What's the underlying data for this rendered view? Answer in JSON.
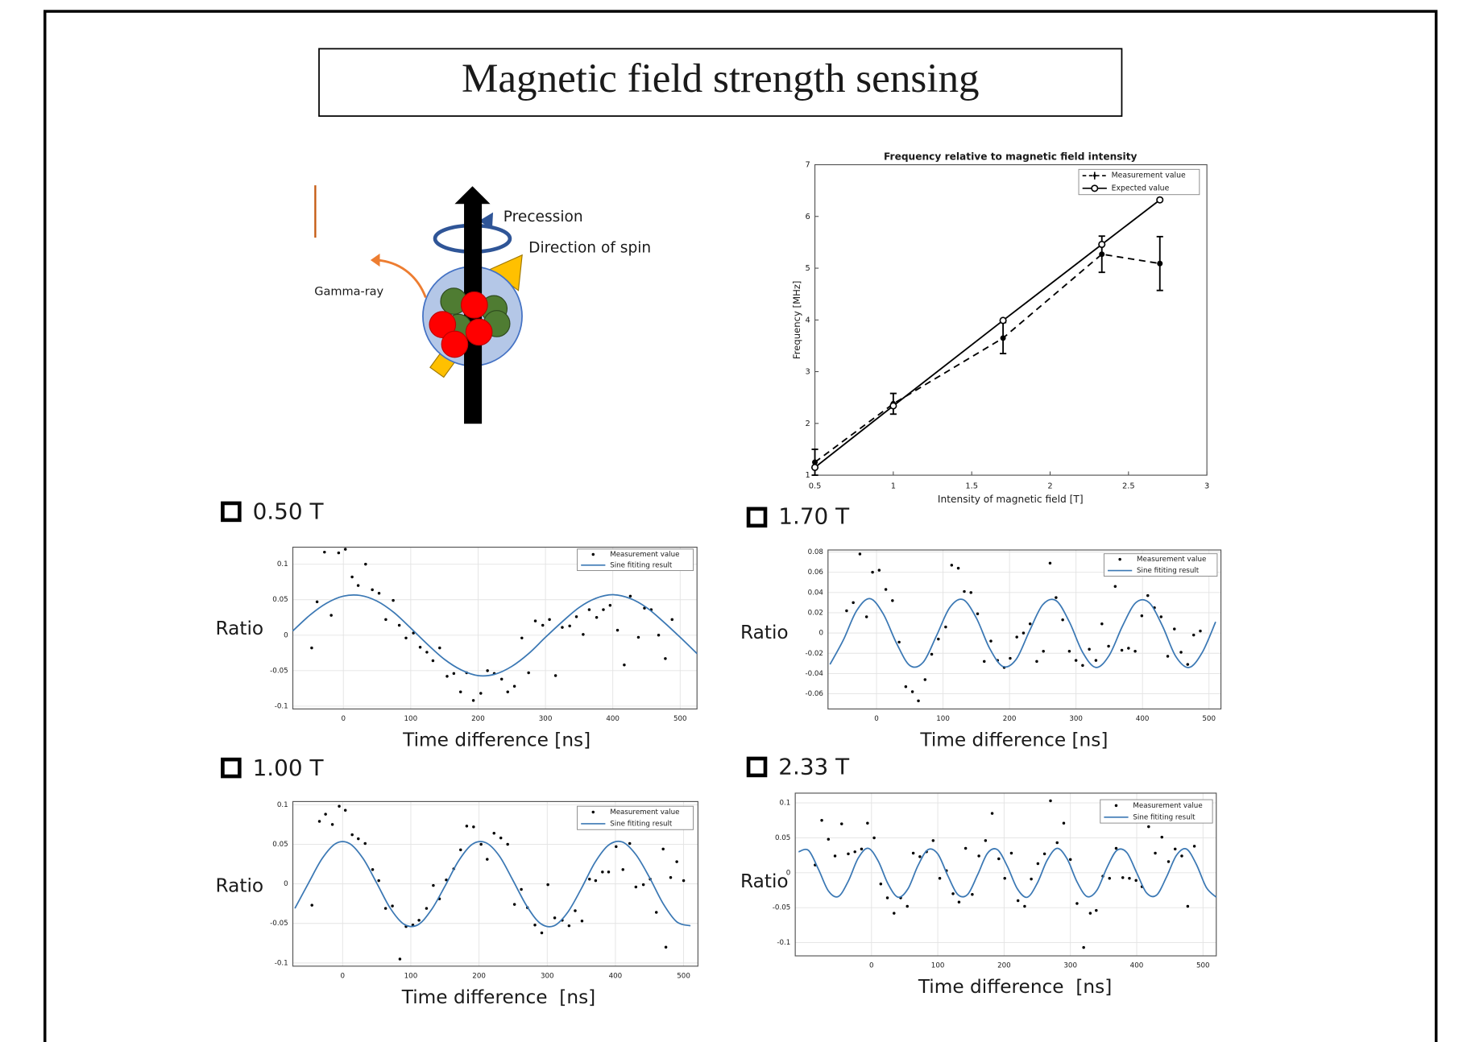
{
  "header": {
    "title": "Magnetic field strength sensing"
  },
  "diagram": {
    "precession": "Precession",
    "spin": "Direction of spin",
    "gamma": "Gamma-ray"
  },
  "chart_data": [
    {
      "type": "line",
      "title": "Frequency relative to magnetic field intensity",
      "x_label": "Intensity of magnetic field [T]",
      "y_label": "Frequency [MHz]",
      "xlim": [
        0.5,
        3
      ],
      "ylim": [
        1,
        7
      ],
      "xticks": [
        0.5,
        1,
        1.5,
        2,
        2.5,
        3
      ],
      "yticks": [
        1,
        2,
        3,
        4,
        5,
        6,
        7
      ],
      "grid": false,
      "legend": "upper right",
      "series": [
        {
          "name": "Measurement value",
          "color": "#000000",
          "line_style": "dashed",
          "marker": "dot",
          "x": [
            0.5,
            1,
            1.7,
            2.33,
            2.7
          ],
          "values": [
            1.25,
            2.38,
            3.65,
            5.27,
            5.09
          ],
          "errors": [
            0.25,
            0.2,
            0.3,
            0.35,
            0.52
          ]
        },
        {
          "name": "Expected value",
          "color": "#000000",
          "line_style": "solid",
          "marker": "open-circle",
          "x": [
            0.5,
            1,
            1.7,
            2.33,
            2.7
          ],
          "values": [
            1.15,
            2.34,
            3.99,
            5.46,
            6.32
          ]
        }
      ]
    },
    {
      "type": "scatter",
      "title": "0.50 T",
      "x_label": "Time difference [ns]",
      "y_label": "Ratio",
      "xlim": [
        -75,
        525
      ],
      "ylim": [
        -0.104,
        0.124
      ],
      "xticks": [
        0,
        100,
        200,
        300,
        400,
        500
      ],
      "yticks": [
        -0.1,
        -0.05,
        0,
        0.05,
        0.1
      ],
      "grid": true,
      "legend": "upper right",
      "series": [
        {
          "name": "Measurement value",
          "type": "scatter",
          "color": "#000000",
          "marker": "dot",
          "x": [
            -47,
            -39,
            -28,
            -18,
            -7,
            3,
            13,
            22,
            33,
            43,
            53,
            63,
            74,
            83,
            93,
            104,
            114,
            124,
            133,
            143,
            154,
            164,
            174,
            183,
            193,
            204,
            214,
            224,
            235,
            244,
            254,
            265,
            275,
            285,
            296,
            306,
            315,
            325,
            336,
            346,
            356,
            365,
            376,
            386,
            396,
            407,
            417,
            426,
            438,
            447,
            457,
            468,
            478,
            488
          ],
          "values": [
            -0.018,
            0.047,
            0.117,
            0.028,
            0.116,
            0.121,
            0.082,
            0.07,
            0.1,
            0.064,
            0.059,
            0.022,
            0.049,
            0.014,
            -0.004,
            0.003,
            -0.017,
            -0.024,
            -0.036,
            -0.018,
            -0.058,
            -0.054,
            -0.08,
            -0.053,
            -0.092,
            -0.082,
            -0.05,
            -0.054,
            -0.062,
            -0.08,
            -0.072,
            -0.004,
            -0.053,
            0.02,
            0.014,
            0.022,
            -0.057,
            0.011,
            0.013,
            0.026,
            0.001,
            0.036,
            0.025,
            0.036,
            0.042,
            0.007,
            -0.042,
            0.055,
            -0.003,
            0.038,
            0.036,
            0,
            -0.033,
            0.022
          ]
        },
        {
          "name": "Sine fititing result",
          "type": "line",
          "color": "#3b78b4",
          "x": [
            -75,
            -50,
            -25,
            0,
            25,
            50,
            75,
            100,
            125,
            150,
            175,
            200,
            225,
            250,
            275,
            300,
            325,
            350,
            375,
            400,
            425,
            450,
            475,
            500,
            525
          ],
          "values": [
            0.006,
            0.028,
            0.045,
            0.055,
            0.056,
            0.048,
            0.032,
            0.01,
            -0.013,
            -0.034,
            -0.049,
            -0.057,
            -0.055,
            -0.044,
            -0.026,
            -0.003,
            0.019,
            0.039,
            0.052,
            0.057,
            0.052,
            0.039,
            0.019,
            -0.003,
            -0.026
          ]
        }
      ]
    },
    {
      "type": "scatter",
      "title": "1.70 T",
      "x_label": "Time difference [ns]",
      "y_label": "Ratio",
      "xlim": [
        -73,
        518
      ],
      "ylim": [
        -0.075,
        0.082
      ],
      "xticks": [
        0,
        100,
        200,
        300,
        400,
        500
      ],
      "yticks": [
        -0.06,
        -0.04,
        -0.02,
        0,
        0.02,
        0.04,
        0.06,
        0.08
      ],
      "grid": true,
      "legend": "upper right",
      "series": [
        {
          "name": "Measurement value",
          "type": "scatter",
          "color": "#000000",
          "marker": "dot",
          "x": [
            -45,
            -35,
            -25,
            -15,
            -6,
            4,
            14,
            24,
            34,
            44,
            54,
            63,
            73,
            83,
            93,
            104,
            113,
            123,
            132,
            142,
            152,
            162,
            172,
            182,
            192,
            201,
            211,
            221,
            231,
            241,
            251,
            261,
            270,
            280,
            290,
            300,
            310,
            320,
            330,
            339,
            349,
            359,
            369,
            379,
            389,
            399,
            408,
            418,
            428,
            438,
            448,
            458,
            468,
            477,
            487
          ],
          "values": [
            0.022,
            0.03,
            0.078,
            0.016,
            0.06,
            0.062,
            0.043,
            0.032,
            -0.009,
            -0.053,
            -0.058,
            -0.067,
            -0.046,
            -0.021,
            -0.006,
            0.006,
            0.067,
            0.064,
            0.041,
            0.04,
            0.019,
            -0.028,
            -0.008,
            -0.027,
            -0.034,
            -0.025,
            -0.004,
            0,
            0.009,
            -0.028,
            -0.018,
            0.069,
            0.035,
            0.013,
            -0.018,
            -0.027,
            -0.032,
            -0.016,
            -0.027,
            0.009,
            -0.013,
            0.046,
            -0.017,
            -0.015,
            -0.018,
            0.017,
            0.037,
            0.025,
            0.016,
            -0.023,
            0.004,
            -0.019,
            -0.031,
            -0.002,
            0.002
          ]
        },
        {
          "name": "Sine fititing result",
          "type": "line",
          "color": "#3b78b4",
          "x": [
            -70,
            -50,
            -30,
            -10,
            10,
            30,
            50,
            70,
            90,
            110,
            130,
            150,
            170,
            190,
            210,
            230,
            250,
            270,
            290,
            310,
            330,
            350,
            370,
            390,
            410,
            430,
            450,
            470,
            490,
            510
          ],
          "values": [
            -0.031,
            -0.007,
            0.022,
            0.034,
            0.019,
            -0.01,
            -0.032,
            -0.029,
            -0.003,
            0.025,
            0.033,
            0.015,
            -0.015,
            -0.033,
            -0.026,
            0.002,
            0.028,
            0.032,
            0.011,
            -0.019,
            -0.034,
            -0.022,
            0.007,
            0.03,
            0.03,
            0.007,
            -0.023,
            -0.034,
            -0.019,
            0.011
          ]
        }
      ]
    },
    {
      "type": "scatter",
      "title": "1.00 T",
      "x_label": "Time difference  [ns]",
      "y_label": "Ratio",
      "xlim": [
        -73,
        521
      ],
      "ylim": [
        -0.104,
        0.104
      ],
      "xticks": [
        0,
        100,
        200,
        300,
        400,
        500
      ],
      "yticks": [
        -0.1,
        -0.05,
        0,
        0.05,
        0.1
      ],
      "grid": true,
      "legend": "upper right",
      "series": [
        {
          "name": "Measurement value",
          "type": "scatter",
          "color": "#000000",
          "marker": "dot",
          "x": [
            -45,
            -34,
            -25,
            -15,
            -5,
            4,
            14,
            23,
            33,
            44,
            53,
            63,
            73,
            84,
            93,
            103,
            112,
            123,
            133,
            142,
            152,
            163,
            173,
            182,
            192,
            203,
            212,
            222,
            232,
            242,
            252,
            262,
            271,
            282,
            292,
            301,
            311,
            322,
            332,
            341,
            351,
            362,
            371,
            381,
            390,
            401,
            411,
            421,
            430,
            441,
            451,
            460,
            470,
            474,
            481,
            490,
            500
          ],
          "values": [
            -0.027,
            0.079,
            0.088,
            0.075,
            0.098,
            0.093,
            0.062,
            0.057,
            0.051,
            0.018,
            0.004,
            -0.031,
            -0.028,
            -0.095,
            -0.054,
            -0.052,
            -0.046,
            -0.031,
            -0.002,
            -0.019,
            0.005,
            0.019,
            0.043,
            0.073,
            0.072,
            0.05,
            0.031,
            0.064,
            0.058,
            0.05,
            -0.026,
            -0.007,
            -0.03,
            -0.052,
            -0.062,
            -0.001,
            -0.043,
            -0.046,
            -0.053,
            -0.034,
            -0.047,
            0.006,
            0.004,
            0.015,
            0.015,
            0.047,
            0.018,
            0.051,
            -0.004,
            -0.001,
            0.006,
            -0.036,
            0.044,
            -0.08,
            0.008,
            0.028,
            0.004
          ]
        },
        {
          "name": "Sine fititing result",
          "type": "line",
          "color": "#3b78b4",
          "x": [
            -70,
            -50,
            -30,
            -10,
            10,
            30,
            50,
            70,
            90,
            110,
            130,
            150,
            170,
            190,
            210,
            230,
            250,
            270,
            290,
            310,
            330,
            350,
            370,
            390,
            410,
            430,
            450,
            470,
            490,
            510
          ],
          "values": [
            -0.031,
            0.001,
            0.032,
            0.051,
            0.051,
            0.032,
            0.001,
            -0.031,
            -0.051,
            -0.052,
            -0.033,
            -0.003,
            0.029,
            0.05,
            0.052,
            0.035,
            0.004,
            -0.028,
            -0.05,
            -0.053,
            -0.036,
            -0.006,
            0.027,
            0.049,
            0.053,
            0.037,
            0.008,
            -0.025,
            -0.048,
            -0.053
          ]
        }
      ]
    },
    {
      "type": "scatter",
      "title": "2.33 T",
      "x_label": "Time difference  [ns]",
      "y_label": "Ratio",
      "xlim": [
        -115,
        520
      ],
      "ylim": [
        -0.119,
        0.114
      ],
      "xticks": [
        0,
        100,
        200,
        300,
        400,
        500
      ],
      "yticks": [
        -0.1,
        -0.05,
        0,
        0.05,
        0.1
      ],
      "grid": true,
      "legend": "upper right",
      "series": [
        {
          "name": "Measurement value",
          "type": "scatter",
          "color": "#000000",
          "marker": "dot",
          "x": [
            -85,
            -75,
            -65,
            -55,
            -45,
            -35,
            -25,
            -15,
            -6,
            4,
            14,
            24,
            34,
            44,
            54,
            63,
            73,
            83,
            93,
            103,
            113,
            123,
            132,
            142,
            152,
            162,
            172,
            182,
            192,
            201,
            211,
            221,
            231,
            241,
            251,
            261,
            270,
            280,
            290,
            300,
            310,
            320,
            330,
            339,
            349,
            359,
            369,
            379,
            389,
            399,
            408,
            418,
            428,
            438,
            448,
            458,
            468,
            477,
            487
          ],
          "values": [
            0.011,
            0.075,
            0.048,
            0.024,
            0.07,
            0.027,
            0.03,
            0.034,
            0.071,
            0.05,
            -0.016,
            -0.036,
            -0.058,
            -0.036,
            -0.048,
            0.028,
            0.023,
            0.03,
            0.046,
            -0.008,
            0.003,
            -0.03,
            -0.042,
            0.035,
            -0.031,
            0.024,
            0.046,
            0.085,
            0.02,
            -0.008,
            0.028,
            -0.04,
            -0.048,
            -0.009,
            0.013,
            0.027,
            0.103,
            0.043,
            0.071,
            0.019,
            -0.044,
            -0.107,
            -0.058,
            -0.054,
            -0.005,
            -0.008,
            0.035,
            -0.007,
            -0.008,
            -0.011,
            -0.02,
            0.066,
            0.028,
            0.051,
            0.016,
            0.034,
            0.024,
            -0.048,
            0.038
          ]
        },
        {
          "name": "Sine fititing result",
          "type": "line",
          "color": "#3b78b4",
          "x": [
            -110,
            -95,
            -80,
            -65,
            -50,
            -35,
            -20,
            -5,
            10,
            25,
            40,
            55,
            70,
            85,
            100,
            115,
            130,
            145,
            160,
            175,
            190,
            205,
            220,
            235,
            250,
            265,
            280,
            295,
            310,
            325,
            340,
            355,
            370,
            385,
            400,
            415,
            430,
            445,
            460,
            475,
            490,
            505,
            520
          ],
          "values": [
            0.03,
            0.032,
            0.005,
            -0.026,
            -0.034,
            -0.012,
            0.021,
            0.035,
            0.017,
            -0.016,
            -0.035,
            -0.023,
            0.01,
            0.033,
            0.027,
            -0.004,
            -0.031,
            -0.031,
            -0.003,
            0.028,
            0.033,
            0.009,
            -0.023,
            -0.035,
            -0.015,
            0.018,
            0.035,
            0.02,
            -0.013,
            -0.034,
            -0.025,
            0.007,
            0.032,
            0.029,
            0,
            -0.029,
            -0.032,
            -0.006,
            0.025,
            0.034,
            0.012,
            -0.021,
            -0.035
          ]
        }
      ]
    }
  ]
}
